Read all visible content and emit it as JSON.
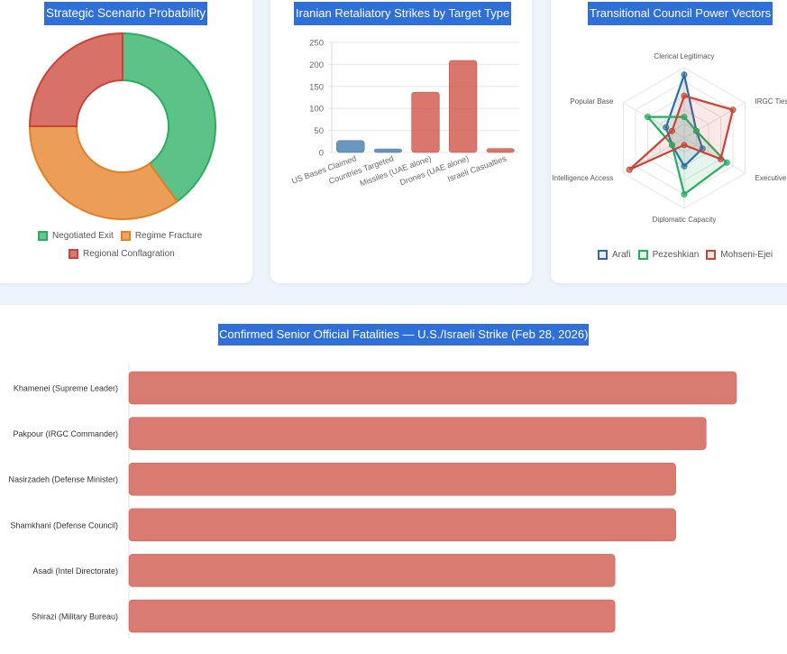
{
  "colors": {
    "red": "#cb4335",
    "green": "#27ae60",
    "orange": "#e67e22",
    "blue": "#2e6da4",
    "title_bg": "#2f6fd8"
  },
  "donut": {
    "title": "Strategic Scenario Probability",
    "chart_data": {
      "type": "pie",
      "title": "Strategic Scenario Probability",
      "labels": [
        "Negotiated Exit",
        "Regime Fracture",
        "Regional Conflagration"
      ],
      "values": [
        40,
        35,
        25
      ]
    }
  },
  "strikes": {
    "title": "Iranian Retaliatory Strikes by Target Type",
    "chart_data": {
      "type": "bar",
      "title": "Iranian Retaliatory Strikes by Target Type",
      "categories": [
        "US Bases Claimed",
        "Countries Targeted",
        "Missiles (UAE alone)",
        "Drones (UAE alone)",
        "Israeli Casualties"
      ],
      "values": [
        27,
        8,
        137,
        209,
        9
      ],
      "colors": [
        "#2e6da4",
        "#2e6da4",
        "#cb4335",
        "#cb4335",
        "#cb4335"
      ],
      "yticks": [
        0,
        50,
        100,
        150,
        200,
        250
      ],
      "ylim": [
        0,
        250
      ]
    }
  },
  "radar": {
    "title": "Transitional Council Power Vectors",
    "chart_data": {
      "type": "radar",
      "title": "Transitional Council Power Vectors",
      "axes": [
        "Clerical Legitimacy",
        "IRGC Ties",
        "Executive Control",
        "Diplomatic Capacity",
        "Intelligence Access",
        "Popular Base"
      ],
      "rmax": 10,
      "series": [
        {
          "name": "Arafi",
          "values": [
            9,
            2,
            3,
            4,
            2,
            3
          ]
        },
        {
          "name": "Pezeshkian",
          "values": [
            3,
            2,
            7,
            8,
            2,
            6
          ]
        },
        {
          "name": "Mohseni-Ejei",
          "values": [
            6,
            8,
            6,
            1,
            9,
            2
          ]
        }
      ]
    }
  },
  "fatalities": {
    "title": "Confirmed Senior Official Fatalities — U.S./Israeli Strike (Feb 28, 2026)",
    "chart_data": {
      "type": "bar",
      "orientation": "horizontal",
      "title": "Confirmed Senior Official Fatalities — U.S./Israeli Strike (Feb 28, 2026)",
      "categories": [
        "Khamenei (Supreme Leader)",
        "Pakpour (IRGC Commander)",
        "Nasirzadeh (Defense Minister)",
        "Shamkhani (Defense Council)",
        "Asadi (Intel Directorate)",
        "Shirazi (Military Bureau)"
      ],
      "values": [
        10,
        9.5,
        9,
        9,
        8,
        8
      ],
      "xlim": [
        0,
        10.5
      ]
    }
  }
}
